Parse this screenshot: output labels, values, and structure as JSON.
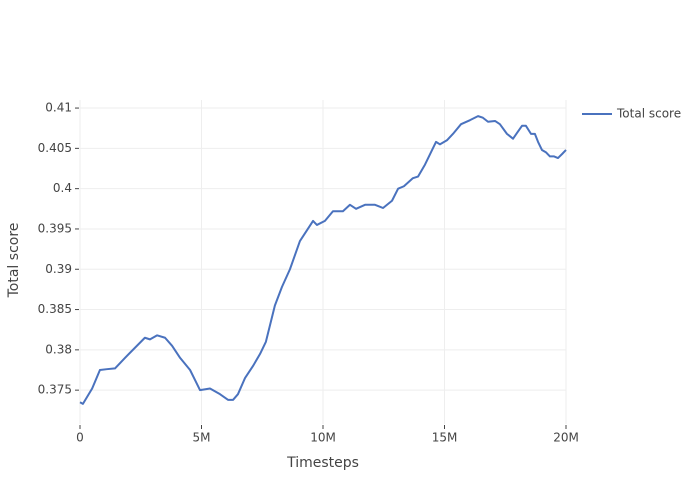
{
  "chart_data": {
    "type": "line",
    "xlabel": "Timesteps",
    "ylabel": "Total score",
    "x": [
      0,
      120000,
      500000,
      820000,
      1100000,
      1440000,
      1850000,
      2670000,
      2880000,
      3170000,
      3500000,
      3790000,
      4120000,
      4530000,
      4940000,
      5350000,
      5760000,
      6090000,
      6300000,
      6500000,
      6790000,
      7120000,
      7410000,
      7650000,
      8020000,
      8310000,
      8640000,
      9050000,
      9590000,
      9750000,
      10080000,
      10410000,
      10820000,
      11110000,
      11360000,
      11730000,
      12140000,
      12470000,
      12840000,
      13090000,
      13330000,
      13700000,
      13910000,
      14200000,
      14490000,
      14650000,
      14810000,
      15100000,
      15350000,
      15680000,
      16050000,
      16380000,
      16580000,
      16790000,
      17080000,
      17280000,
      17570000,
      17820000,
      17980000,
      18190000,
      18350000,
      18560000,
      18720000,
      18850000,
      19010000,
      19180000,
      19340000,
      19510000,
      19670000,
      19840000,
      20000000
    ],
    "series": [
      {
        "name": "Total score",
        "color": "#4a72be",
        "values": [
          0.3735,
          0.3733,
          0.3752,
          0.3775,
          0.3776,
          0.3777,
          0.379,
          0.3815,
          0.3813,
          0.3818,
          0.3815,
          0.3805,
          0.379,
          0.3775,
          0.375,
          0.3752,
          0.3745,
          0.3738,
          0.3738,
          0.3745,
          0.3765,
          0.378,
          0.3795,
          0.381,
          0.3855,
          0.3878,
          0.39,
          0.3935,
          0.396,
          0.3955,
          0.396,
          0.3972,
          0.3972,
          0.398,
          0.3975,
          0.398,
          0.398,
          0.3976,
          0.3985,
          0.4,
          0.4003,
          0.4013,
          0.4015,
          0.403,
          0.4048,
          0.4058,
          0.4055,
          0.406,
          0.4068,
          0.408,
          0.4085,
          0.409,
          0.4088,
          0.4083,
          0.4084,
          0.408,
          0.4068,
          0.4062,
          0.4069,
          0.4078,
          0.4078,
          0.4068,
          0.4068,
          0.4058,
          0.4048,
          0.4045,
          0.404,
          0.404,
          0.4038,
          0.4043,
          0.4048
        ]
      }
    ],
    "xlim": [
      0,
      20000000
    ],
    "xticks": [
      0,
      {
        "value": 5000000,
        "label": "5M"
      },
      {
        "value": 10000000,
        "label": "10M"
      },
      {
        "value": 15000000,
        "label": "15M"
      },
      {
        "value": 20000000,
        "label": "20M"
      }
    ],
    "ylim": [
      0.3708,
      0.411
    ],
    "yticks": [
      0.375,
      0.38,
      0.385,
      0.39,
      0.395,
      0.4,
      0.405,
      0.41
    ],
    "grid": true,
    "legend": "right"
  }
}
